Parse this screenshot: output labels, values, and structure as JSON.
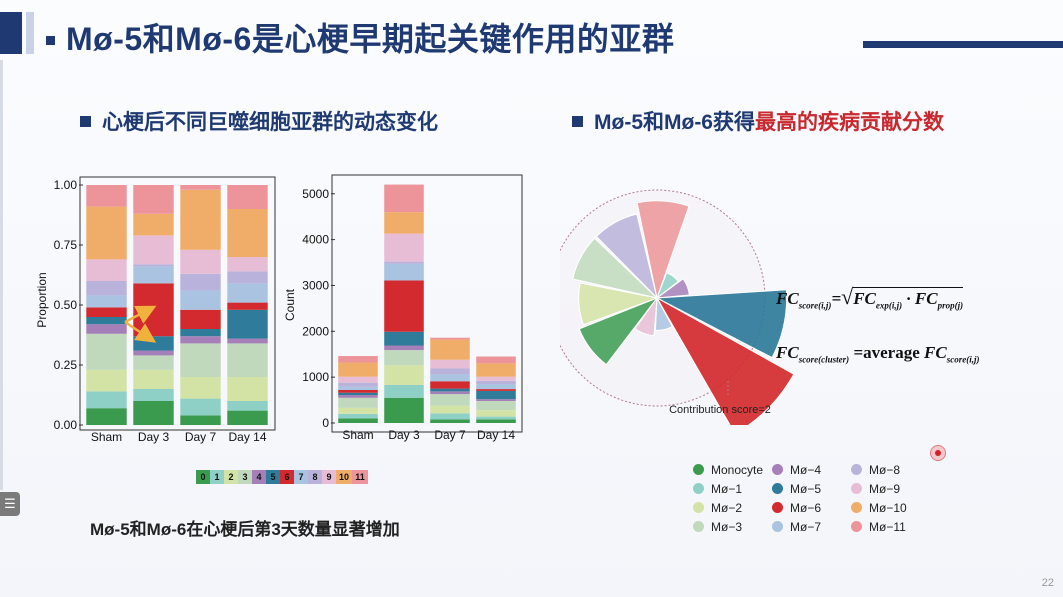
{
  "title": "Mø-5和Mø-6是心梗早期起关键作用的亚群",
  "left_heading": "心梗后不同巨噬细胞亚群的动态变化",
  "right_heading_prefix": "Mø-5和Mø-6获得",
  "right_heading_highlight": "最高的疾病贡献分数",
  "caption": "Mø-5和Mø-6在心梗后第3天数量显著增加",
  "page_number": "22",
  "side_tab_icon": "list-icon",
  "cluster_legend": [
    {
      "label": "0",
      "color": "#3a9b4f"
    },
    {
      "label": "1",
      "color": "#8fd0c6"
    },
    {
      "label": "2",
      "color": "#d3e3a5"
    },
    {
      "label": "3",
      "color": "#c0d9bc"
    },
    {
      "label": "4",
      "color": "#a580b8"
    },
    {
      "label": "5",
      "color": "#2e7b9a"
    },
    {
      "label": "6",
      "color": "#d22a2e"
    },
    {
      "label": "7",
      "color": "#a9c3e0"
    },
    {
      "label": "8",
      "color": "#b9b3db"
    },
    {
      "label": "9",
      "color": "#e6bdd5"
    },
    {
      "label": "10",
      "color": "#f0ad6a"
    },
    {
      "label": "11",
      "color": "#ec9499"
    }
  ],
  "formula1": {
    "lhs": "FC",
    "lhs_sub": "score(i,j)",
    "eq": "=",
    "t1": "FC",
    "t1_sub": "exp(i,j)",
    "dot": "·",
    "t2": "FC",
    "t2_sub": "prop(j)"
  },
  "formula2": {
    "lhs": "FC",
    "lhs_sub": "score(cluster)",
    "eq": "=average",
    "t": "FC",
    "t_sub": "score(i,j)"
  },
  "celltype_legend": [
    {
      "label": "Monocyte",
      "color": "#3a9b4f"
    },
    {
      "label": "Mø−1",
      "color": "#8fd0c6"
    },
    {
      "label": "Mø−2",
      "color": "#d3e3a5"
    },
    {
      "label": "Mø−3",
      "color": "#c0d9bc"
    },
    {
      "label": "Mø−4",
      "color": "#a580b8"
    },
    {
      "label": "Mø−5",
      "color": "#2e7b9a"
    },
    {
      "label": "Mø−6",
      "color": "#d22a2e"
    },
    {
      "label": "Mø−7",
      "color": "#a9c3e0"
    },
    {
      "label": "Mø−8",
      "color": "#b9b3db"
    },
    {
      "label": "Mø−9",
      "color": "#e6bdd5"
    },
    {
      "label": "Mø−10",
      "color": "#f0ad6a"
    },
    {
      "label": "Mø−11",
      "color": "#ec9499"
    }
  ],
  "chart_data": [
    {
      "type": "bar",
      "stacked": true,
      "categories": [
        "Sham",
        "Day 3",
        "Day 7",
        "Day 14"
      ],
      "ylabel": "Proportion",
      "ylim": [
        0,
        1
      ],
      "yticks": [
        "0.00",
        "0.25",
        "0.50",
        "0.75",
        "1.00"
      ],
      "series": [
        {
          "values": [
            0.07,
            0.1,
            0.04,
            0.06
          ]
        },
        {
          "values": [
            0.07,
            0.05,
            0.07,
            0.04
          ]
        },
        {
          "values": [
            0.09,
            0.08,
            0.09,
            0.1
          ]
        },
        {
          "values": [
            0.15,
            0.06,
            0.14,
            0.14
          ]
        },
        {
          "values": [
            0.04,
            0.02,
            0.03,
            0.02
          ]
        },
        {
          "values": [
            0.03,
            0.06,
            0.03,
            0.12
          ]
        },
        {
          "values": [
            0.04,
            0.22,
            0.08,
            0.03
          ]
        },
        {
          "values": [
            0.05,
            0.07,
            0.08,
            0.08
          ]
        },
        {
          "values": [
            0.06,
            0.01,
            0.07,
            0.05
          ]
        },
        {
          "values": [
            0.09,
            0.12,
            0.1,
            0.06
          ]
        },
        {
          "values": [
            0.22,
            0.09,
            0.25,
            0.2
          ]
        },
        {
          "values": [
            0.09,
            0.12,
            0.02,
            0.1
          ]
        }
      ]
    },
    {
      "type": "bar",
      "stacked": true,
      "categories": [
        "Sham",
        "Day 3",
        "Day 7",
        "Day 14"
      ],
      "ylabel": "Count",
      "ylim": [
        0,
        5300
      ],
      "yticks": [
        "0",
        "1000",
        "2000",
        "3000",
        "4000",
        "5000"
      ],
      "series": [
        {
          "values": [
            100,
            550,
            80,
            80
          ]
        },
        {
          "values": [
            100,
            280,
            130,
            60
          ]
        },
        {
          "values": [
            130,
            430,
            170,
            140
          ]
        },
        {
          "values": [
            220,
            330,
            250,
            200
          ]
        },
        {
          "values": [
            60,
            100,
            60,
            40
          ]
        },
        {
          "values": [
            50,
            300,
            60,
            180
          ]
        },
        {
          "values": [
            60,
            1120,
            160,
            40
          ]
        },
        {
          "values": [
            70,
            360,
            150,
            110
          ]
        },
        {
          "values": [
            90,
            50,
            130,
            70
          ]
        },
        {
          "values": [
            130,
            610,
            190,
            90
          ]
        },
        {
          "values": [
            310,
            470,
            440,
            290
          ]
        },
        {
          "values": [
            140,
            600,
            40,
            150
          ]
        }
      ]
    },
    {
      "type": "pie",
      "variant": "rose",
      "annotation": "Contribution score=2",
      "reference_score": 2,
      "slices": [
        {
          "label": "Mø−1",
          "score": 0.5
        },
        {
          "label": "Mø−4",
          "score": 0.6
        },
        {
          "label": "Mø−5",
          "score": 2.4
        },
        {
          "label": "Mø−6",
          "score": 2.9
        },
        {
          "label": "Mø−7",
          "score": 0.6
        },
        {
          "label": "Mø−9",
          "score": 0.7
        },
        {
          "label": "Monocyte",
          "score": 1.55
        },
        {
          "label": "Mø−2",
          "score": 1.45
        },
        {
          "label": "Mø−3",
          "score": 1.6
        },
        {
          "label": "Mø−8",
          "score": 1.6
        },
        {
          "label": "Mø−11",
          "score": 1.8
        }
      ]
    }
  ]
}
